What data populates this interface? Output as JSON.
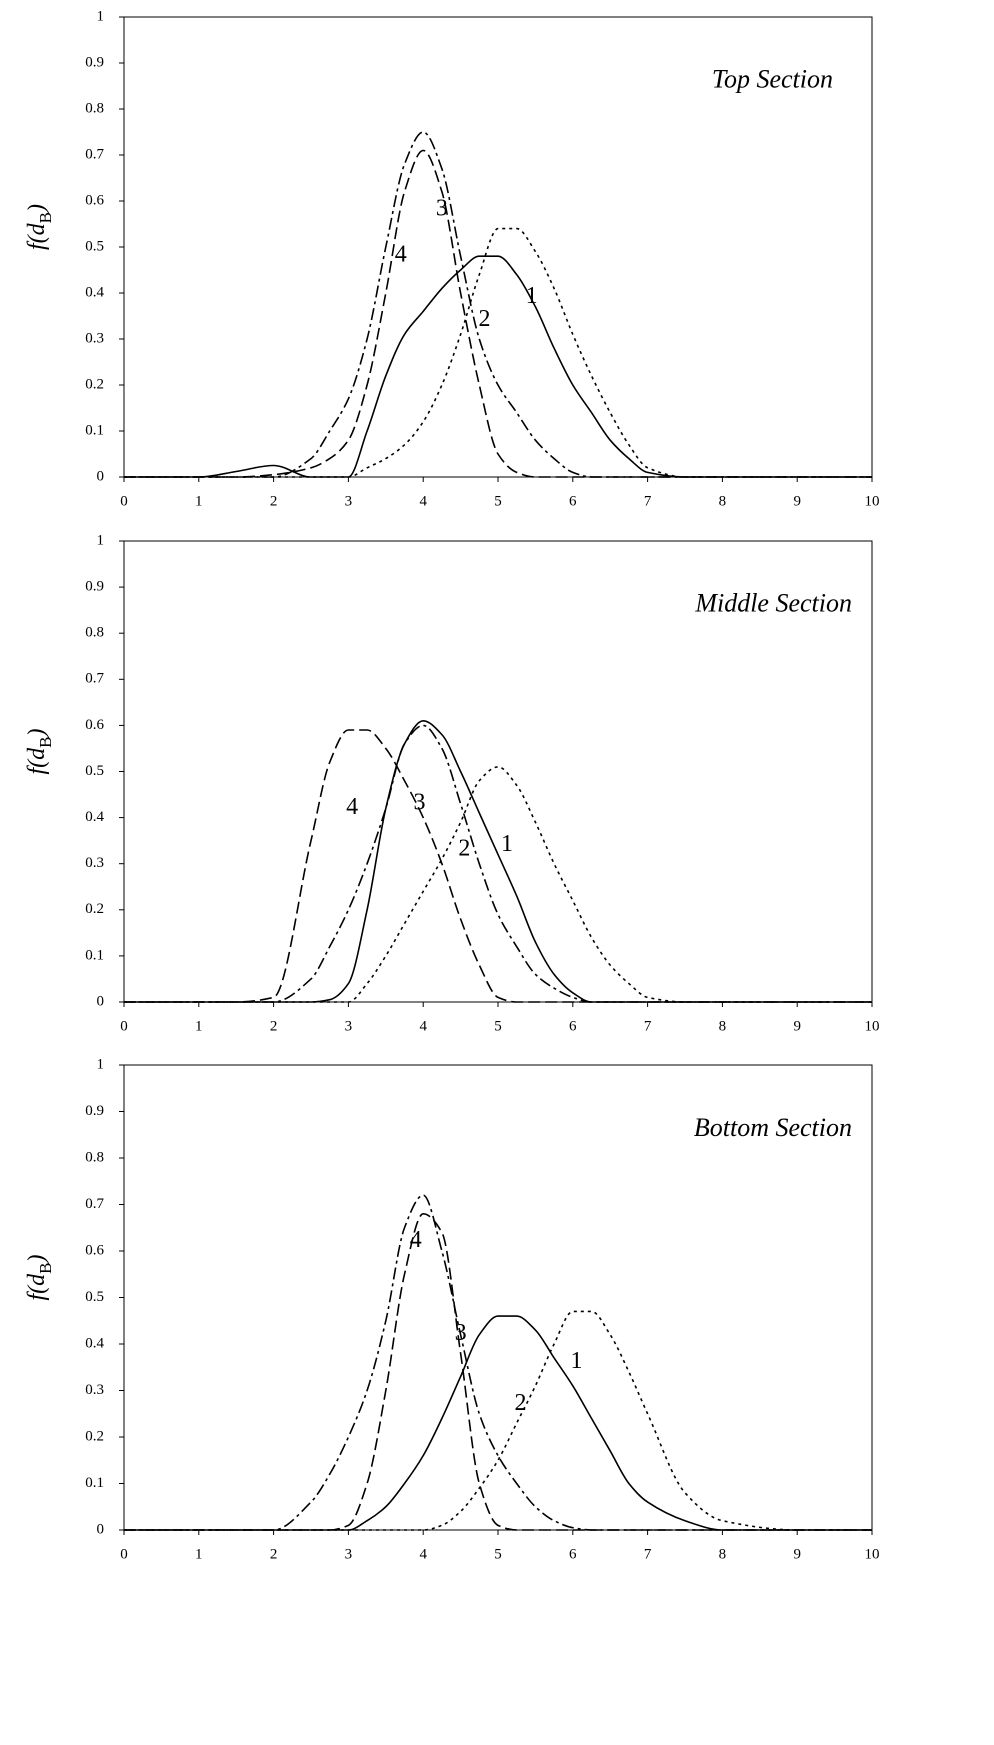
{
  "chart_data": [
    {
      "type": "line",
      "title": "Top Section",
      "ylabel": [
        "f(d",
        "B",
        ")"
      ],
      "x": [
        0,
        1,
        1.5,
        2,
        2.5,
        2.75,
        3,
        3.25,
        3.5,
        3.75,
        4,
        4.25,
        4.5,
        4.75,
        5,
        5.25,
        5.5,
        5.75,
        6,
        6.25,
        6.5,
        6.75,
        7,
        7.5,
        8,
        9,
        10
      ],
      "xlim": [
        0,
        10
      ],
      "ylim": [
        0,
        1
      ],
      "xticks": [
        0,
        1,
        2,
        3,
        4,
        5,
        6,
        7,
        8,
        9,
        10
      ],
      "yticks": [
        0,
        0.1,
        0.2,
        0.3,
        0.4,
        0.5,
        0.6,
        0.7,
        0.8,
        0.9,
        1
      ],
      "series": [
        {
          "name": "1",
          "color": "#000000",
          "dash": "solid",
          "values": [
            0,
            0,
            0.012,
            0.025,
            0,
            0,
            0,
            0.1,
            0.22,
            0.31,
            0.36,
            0.41,
            0.45,
            0.48,
            0.48,
            0.44,
            0.37,
            0.28,
            0.2,
            0.14,
            0.08,
            0.04,
            0.01,
            0,
            0,
            0,
            0
          ]
        },
        {
          "name": "2",
          "color": "#000000",
          "dash": "dotted",
          "values": [
            0,
            0,
            0,
            0,
            0,
            0,
            0,
            0.02,
            0.04,
            0.07,
            0.12,
            0.2,
            0.31,
            0.44,
            0.54,
            0.54,
            0.49,
            0.41,
            0.31,
            0.22,
            0.14,
            0.07,
            0.02,
            0,
            0,
            0,
            0
          ]
        },
        {
          "name": "3",
          "color": "#000000",
          "dash": "dashed",
          "values": [
            0,
            0,
            0,
            0.005,
            0.02,
            0.04,
            0.08,
            0.2,
            0.4,
            0.62,
            0.71,
            0.62,
            0.4,
            0.2,
            0.05,
            0.01,
            0,
            0,
            0,
            0,
            0,
            0,
            0,
            0,
            0,
            0,
            0
          ]
        },
        {
          "name": "4",
          "color": "#000000",
          "dash": "dashdot",
          "values": [
            0,
            0,
            0,
            0,
            0.04,
            0.1,
            0.17,
            0.3,
            0.5,
            0.68,
            0.75,
            0.67,
            0.48,
            0.3,
            0.2,
            0.14,
            0.08,
            0.04,
            0.01,
            0,
            0,
            0,
            0,
            0,
            0,
            0,
            0
          ]
        }
      ]
    },
    {
      "type": "line",
      "title": "Middle Section",
      "ylabel": [
        "f(d",
        "B",
        ")"
      ],
      "x": [
        0,
        1,
        1.5,
        2,
        2.5,
        2.75,
        3,
        3.25,
        3.5,
        3.75,
        4,
        4.25,
        4.5,
        4.75,
        5,
        5.25,
        5.5,
        5.75,
        6,
        6.25,
        6.5,
        6.75,
        7,
        7.5,
        8,
        9,
        10
      ],
      "xlim": [
        0,
        10
      ],
      "ylim": [
        0,
        1
      ],
      "xticks": [
        0,
        1,
        2,
        3,
        4,
        5,
        6,
        7,
        8,
        9,
        10
      ],
      "yticks": [
        0,
        0.1,
        0.2,
        0.3,
        0.4,
        0.5,
        0.6,
        0.7,
        0.8,
        0.9,
        1
      ],
      "series": [
        {
          "name": "1",
          "color": "#000000",
          "dash": "solid",
          "values": [
            0,
            0,
            0,
            0,
            0,
            0.005,
            0.04,
            0.2,
            0.42,
            0.56,
            0.61,
            0.58,
            0.5,
            0.41,
            0.32,
            0.23,
            0.13,
            0.06,
            0.02,
            0,
            0,
            0,
            0,
            0,
            0,
            0,
            0
          ]
        },
        {
          "name": "2",
          "color": "#000000",
          "dash": "dotted",
          "values": [
            0,
            0,
            0,
            0,
            0,
            0,
            0,
            0.04,
            0.1,
            0.17,
            0.24,
            0.31,
            0.39,
            0.48,
            0.51,
            0.47,
            0.39,
            0.3,
            0.22,
            0.14,
            0.08,
            0.04,
            0.01,
            0,
            0,
            0,
            0
          ]
        },
        {
          "name": "3",
          "color": "#000000",
          "dash": "dashdot",
          "values": [
            0,
            0,
            0,
            0,
            0.05,
            0.12,
            0.2,
            0.3,
            0.42,
            0.56,
            0.6,
            0.55,
            0.43,
            0.3,
            0.19,
            0.12,
            0.06,
            0.03,
            0.01,
            0,
            0,
            0,
            0,
            0,
            0,
            0,
            0
          ]
        },
        {
          "name": "4",
          "color": "#000000",
          "dash": "dashed",
          "values": [
            0,
            0,
            0,
            0.01,
            0.35,
            0.52,
            0.59,
            0.59,
            0.55,
            0.48,
            0.4,
            0.3,
            0.18,
            0.08,
            0.01,
            0,
            0,
            0,
            0,
            0,
            0,
            0,
            0,
            0,
            0,
            0,
            0
          ]
        }
      ]
    },
    {
      "type": "line",
      "title": "Bottom Section",
      "ylabel": [
        "f(d",
        "B",
        ")"
      ],
      "x": [
        0,
        1,
        1.5,
        2,
        2.5,
        2.75,
        3,
        3.25,
        3.5,
        3.75,
        4,
        4.25,
        4.5,
        4.75,
        5,
        5.25,
        5.5,
        5.75,
        6,
        6.25,
        6.5,
        6.75,
        7,
        7.5,
        8,
        9,
        10
      ],
      "xlim": [
        0,
        10
      ],
      "ylim": [
        0,
        1
      ],
      "xticks": [
        0,
        1,
        2,
        3,
        4,
        5,
        6,
        7,
        8,
        9,
        10
      ],
      "yticks": [
        0,
        0.1,
        0.2,
        0.3,
        0.4,
        0.5,
        0.6,
        0.7,
        0.8,
        0.9,
        1
      ],
      "series": [
        {
          "name": "1",
          "color": "#000000",
          "dash": "solid",
          "values": [
            0,
            0,
            0,
            0,
            0,
            0,
            0,
            0.02,
            0.05,
            0.1,
            0.16,
            0.24,
            0.33,
            0.42,
            0.46,
            0.46,
            0.43,
            0.37,
            0.31,
            0.24,
            0.17,
            0.1,
            0.06,
            0.02,
            0,
            0,
            0
          ]
        },
        {
          "name": "2",
          "color": "#000000",
          "dash": "dotted",
          "values": [
            0,
            0,
            0,
            0,
            0,
            0,
            0,
            0,
            0,
            0,
            0,
            0.01,
            0.04,
            0.09,
            0.15,
            0.23,
            0.31,
            0.4,
            0.47,
            0.47,
            0.42,
            0.34,
            0.25,
            0.08,
            0.02,
            0,
            0
          ]
        },
        {
          "name": "3",
          "color": "#000000",
          "dash": "dashed",
          "values": [
            0,
            0,
            0,
            0,
            0,
            0,
            0.01,
            0.1,
            0.3,
            0.55,
            0.68,
            0.64,
            0.38,
            0.1,
            0.01,
            0,
            0,
            0,
            0,
            0,
            0,
            0,
            0,
            0,
            0,
            0,
            0
          ]
        },
        {
          "name": "4",
          "color": "#000000",
          "dash": "dashdot",
          "values": [
            0,
            0,
            0,
            0,
            0.06,
            0.12,
            0.2,
            0.3,
            0.45,
            0.65,
            0.72,
            0.6,
            0.42,
            0.25,
            0.16,
            0.1,
            0.05,
            0.02,
            0.005,
            0,
            0,
            0,
            0,
            0,
            0,
            0,
            0
          ]
        }
      ]
    }
  ]
}
